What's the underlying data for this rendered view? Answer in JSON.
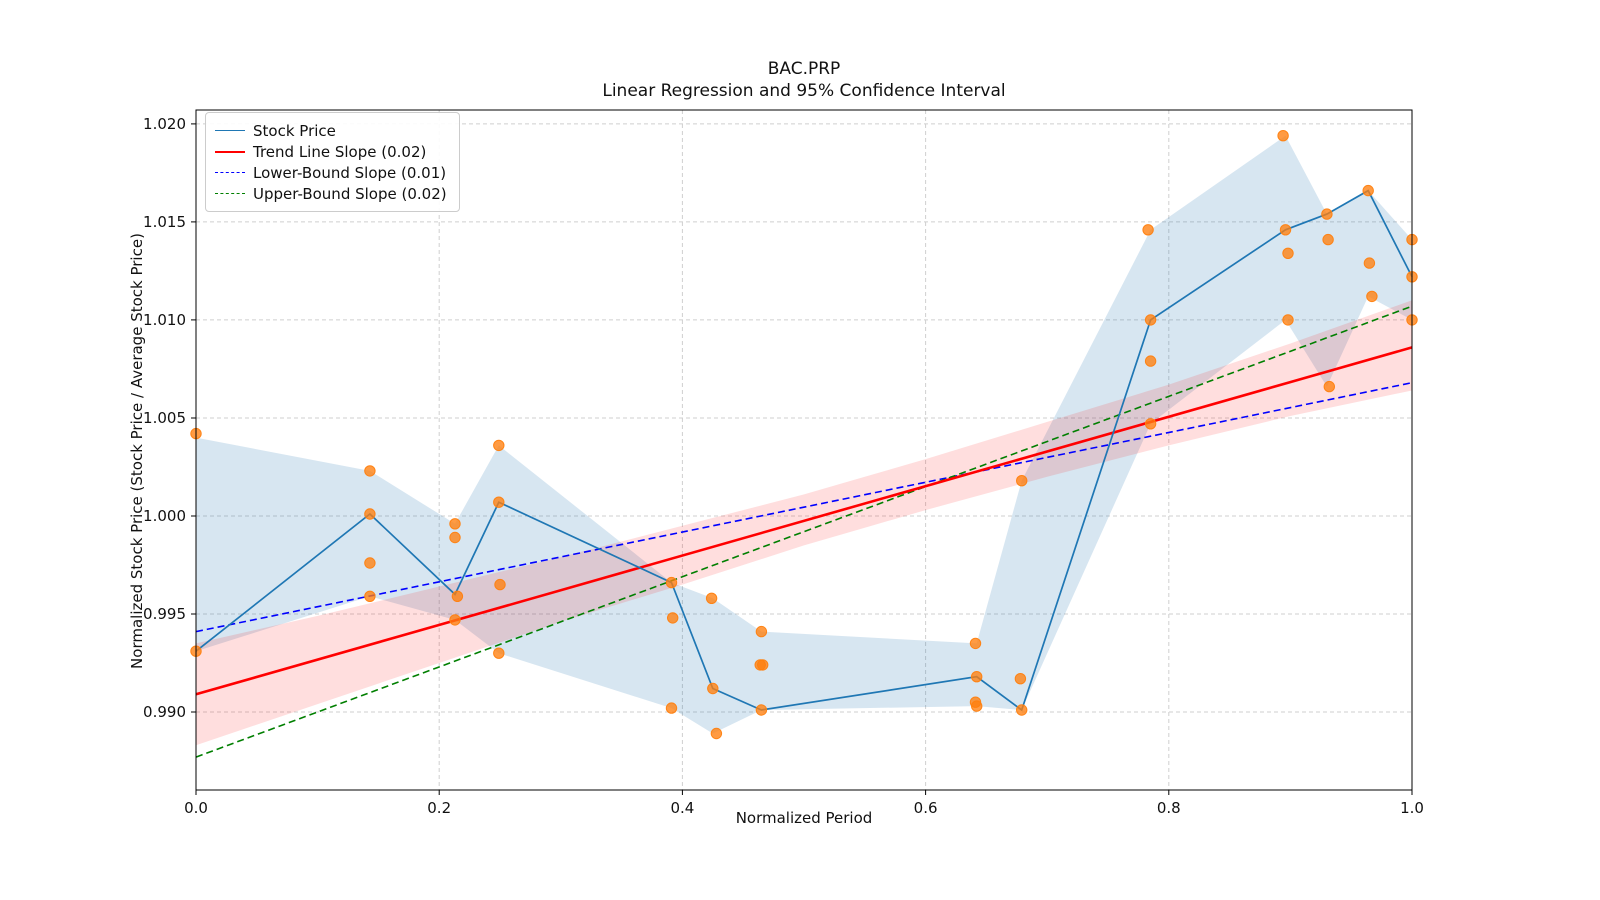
{
  "figure": {
    "title": "BAC.PRP",
    "subtitle": "Linear Regression and 95% Confidence Interval",
    "xlabel": "Normalized Period",
    "ylabel": "Normalized Stock Price (Stock Price / Average Stock Price)"
  },
  "legend": {
    "items": [
      {
        "label": "Stock Price",
        "color": "#1f77b4",
        "style": "solid",
        "weight": 1.6
      },
      {
        "label": "Trend Line Slope (0.02)",
        "color": "#ff0000",
        "style": "solid",
        "weight": 2.5
      },
      {
        "label": "Lower-Bound Slope (0.01)",
        "color": "#0000ff",
        "style": "dashed",
        "weight": 1.6
      },
      {
        "label": "Upper-Bound Slope (0.02)",
        "color": "#007f00",
        "style": "dashed",
        "weight": 1.6
      }
    ]
  },
  "chart_data": {
    "type": "line",
    "title": "BAC.PRP",
    "subtitle": "Linear Regression and 95% Confidence Interval",
    "xlabel": "Normalized Period",
    "ylabel": "Normalized Stock Price (Stock Price / Average Stock Price)",
    "xlim": [
      0.0,
      1.0
    ],
    "ylim": [
      0.98602,
      1.02071
    ],
    "xticks": [
      0.0,
      0.2,
      0.4,
      0.6,
      0.8,
      1.0
    ],
    "xtick_labels": [
      "0.0",
      "0.2",
      "0.4",
      "0.6",
      "0.8",
      "1.0"
    ],
    "yticks": [
      0.99,
      0.995,
      1.0,
      1.005,
      1.01,
      1.015,
      1.02
    ],
    "ytick_labels": [
      "0.990",
      "0.995",
      "1.000",
      "1.005",
      "1.010",
      "1.015",
      "1.020"
    ],
    "grid": true,
    "colors": {
      "stock_line": "#1f77b4",
      "stock_band": "#1f77b4",
      "trend_line": "#ff0000",
      "trend_band": "#ff0000",
      "lower_bound": "#0000ff",
      "upper_bound": "#007f00",
      "scatter": "#ff7f0e",
      "grid": "#cfcfcf",
      "spine": "#000000"
    },
    "series": {
      "stock_price": {
        "x": [
          0.0,
          0.143,
          0.213,
          0.249,
          0.391,
          0.425,
          0.465,
          0.642,
          0.679,
          0.785,
          0.896,
          0.93,
          0.964,
          1.0
        ],
        "y": [
          0.9931,
          1.0001,
          0.996,
          1.0007,
          0.9966,
          0.9912,
          0.9901,
          0.9918,
          0.9901,
          1.01,
          1.0146,
          1.0154,
          1.0166,
          1.0122
        ]
      },
      "stock_band": {
        "x": [
          0.0,
          0.143,
          0.213,
          0.249,
          0.391,
          0.425,
          0.465,
          0.642,
          0.679,
          0.785,
          0.896,
          0.93,
          0.964,
          1.0
        ],
        "upper": [
          1.004,
          1.0023,
          0.9996,
          1.0036,
          0.9966,
          0.9958,
          0.9941,
          0.9935,
          1.0018,
          1.0146,
          1.0194,
          1.0154,
          1.0166,
          1.0141
        ],
        "lower": [
          0.9931,
          0.9959,
          0.9947,
          0.993,
          0.9902,
          0.9889,
          0.9901,
          0.9903,
          0.9901,
          1.0047,
          1.01,
          1.0066,
          1.0112,
          1.01
        ]
      },
      "trend_line": {
        "x": [
          0.0,
          1.0
        ],
        "y": [
          0.9909,
          1.0086
        ],
        "slope": 0.02
      },
      "trend_band": {
        "x": [
          0.0,
          0.1,
          0.2,
          0.3,
          0.4,
          0.5,
          0.55,
          0.6,
          0.7,
          0.8,
          0.9,
          1.0
        ],
        "upper": [
          0.9935,
          0.9949,
          0.9964,
          0.9979,
          0.9995,
          1.0011,
          1.002,
          1.0029,
          1.0048,
          1.0067,
          1.0088,
          1.011
        ],
        "lower": [
          0.9883,
          0.9904,
          0.9925,
          0.9946,
          0.9965,
          0.9985,
          0.9994,
          1.0003,
          1.002,
          1.0036,
          1.0051,
          1.0064
        ]
      },
      "lower_bound": {
        "x": [
          0.0,
          1.0
        ],
        "y": [
          0.9941,
          1.0068
        ],
        "slope": 0.01
      },
      "upper_bound": {
        "x": [
          0.0,
          1.0
        ],
        "y": [
          0.9877,
          1.0107
        ],
        "slope": 0.02
      },
      "scatter": {
        "x": [
          0.0,
          0.0,
          0.143,
          0.143,
          0.143,
          0.143,
          0.213,
          0.213,
          0.215,
          0.213,
          0.249,
          0.249,
          0.25,
          0.249,
          0.391,
          0.392,
          0.391,
          0.424,
          0.425,
          0.428,
          0.465,
          0.464,
          0.466,
          0.465,
          0.641,
          0.642,
          0.641,
          0.642,
          0.679,
          0.678,
          0.679,
          0.783,
          0.785,
          0.785,
          0.785,
          0.894,
          0.896,
          0.898,
          0.898,
          0.93,
          0.931,
          0.932,
          0.964,
          0.965,
          0.967,
          1.0,
          1.0,
          1.0
        ],
        "y": [
          1.0042,
          0.9931,
          1.0023,
          1.0001,
          0.9976,
          0.9959,
          0.9996,
          0.9989,
          0.9959,
          0.9947,
          1.0036,
          1.0007,
          0.9965,
          0.993,
          0.9966,
          0.9948,
          0.9902,
          0.9958,
          0.9912,
          0.9889,
          0.9941,
          0.9924,
          0.9924,
          0.9901,
          0.9935,
          0.9918,
          0.9905,
          0.9903,
          1.0018,
          0.9917,
          0.9901,
          1.0146,
          1.01,
          1.0079,
          1.0047,
          1.0194,
          1.0146,
          1.0134,
          1.01,
          1.0154,
          1.0141,
          1.0066,
          1.0166,
          1.0129,
          1.0112,
          1.0141,
          1.0122,
          1.01
        ]
      }
    }
  }
}
